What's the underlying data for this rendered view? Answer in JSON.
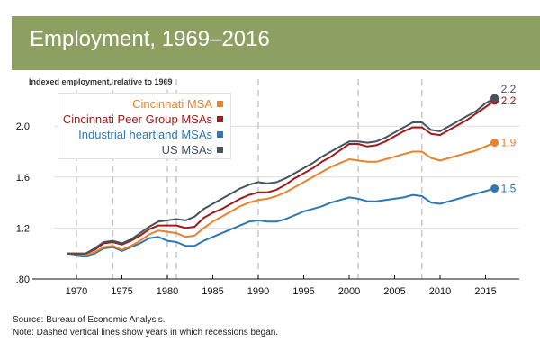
{
  "header": {
    "title": "Employment, 1969–2016",
    "subtitle": "Indexed employment, relative to 1969",
    "banner_color": "#8da061"
  },
  "chart_data": {
    "type": "line",
    "title": "Employment, 1969–2016",
    "ylabel": "Indexed employment, relative to 1969",
    "xlabel": "",
    "xlim": [
      1966,
      2019
    ],
    "ylim": [
      0.8,
      2.3
    ],
    "x_ticks": [
      1970,
      1975,
      1980,
      1985,
      1990,
      1995,
      2000,
      2005,
      2010,
      2015
    ],
    "y_ticks": [
      0.8,
      1.2,
      1.6,
      2.0
    ],
    "y_tick_labels": [
      ".80",
      "1.2",
      "1.6",
      "2.0"
    ],
    "grid": "horizontal",
    "recession_years": [
      1970,
      1974,
      1980,
      1981,
      1990,
      2001,
      2008
    ],
    "legend_position": "top-left",
    "x": [
      1969,
      1970,
      1971,
      1972,
      1973,
      1974,
      1975,
      1976,
      1977,
      1978,
      1979,
      1980,
      1981,
      1982,
      1983,
      1984,
      1985,
      1986,
      1987,
      1988,
      1989,
      1990,
      1991,
      1992,
      1993,
      1994,
      1995,
      1996,
      1997,
      1998,
      1999,
      2000,
      2001,
      2002,
      2003,
      2004,
      2005,
      2006,
      2007,
      2008,
      2009,
      2010,
      2011,
      2012,
      2013,
      2014,
      2015,
      2016
    ],
    "series": [
      {
        "name": "Cincinnati MSA",
        "color": "#e9822a",
        "end_label": "1.9",
        "values": [
          1.0,
          1.0,
          0.99,
          1.01,
          1.05,
          1.06,
          1.03,
          1.06,
          1.1,
          1.15,
          1.18,
          1.17,
          1.16,
          1.13,
          1.14,
          1.2,
          1.25,
          1.29,
          1.33,
          1.37,
          1.4,
          1.42,
          1.43,
          1.45,
          1.48,
          1.52,
          1.56,
          1.6,
          1.64,
          1.68,
          1.71,
          1.74,
          1.73,
          1.72,
          1.72,
          1.74,
          1.76,
          1.78,
          1.8,
          1.8,
          1.75,
          1.73,
          1.75,
          1.77,
          1.79,
          1.81,
          1.84,
          1.87
        ]
      },
      {
        "name": "Cincinnati Peer Group MSAs",
        "color": "#a11b1b",
        "end_label": "2.2",
        "values": [
          1.0,
          1.0,
          1.0,
          1.03,
          1.08,
          1.09,
          1.07,
          1.1,
          1.14,
          1.19,
          1.22,
          1.22,
          1.22,
          1.2,
          1.21,
          1.28,
          1.32,
          1.35,
          1.39,
          1.43,
          1.46,
          1.48,
          1.48,
          1.5,
          1.54,
          1.59,
          1.63,
          1.67,
          1.72,
          1.76,
          1.81,
          1.86,
          1.86,
          1.84,
          1.85,
          1.88,
          1.92,
          1.96,
          1.99,
          1.99,
          1.94,
          1.93,
          1.97,
          2.01,
          2.05,
          2.1,
          2.15,
          2.2
        ]
      },
      {
        "name": "Industrial heartland MSAs",
        "color": "#2d79b5",
        "end_label": "1.5",
        "values": [
          1.0,
          0.99,
          0.98,
          1.0,
          1.04,
          1.05,
          1.02,
          1.05,
          1.08,
          1.12,
          1.13,
          1.1,
          1.09,
          1.06,
          1.06,
          1.1,
          1.13,
          1.16,
          1.19,
          1.22,
          1.25,
          1.26,
          1.25,
          1.25,
          1.27,
          1.3,
          1.33,
          1.35,
          1.37,
          1.4,
          1.42,
          1.44,
          1.43,
          1.41,
          1.41,
          1.42,
          1.43,
          1.44,
          1.46,
          1.45,
          1.4,
          1.39,
          1.41,
          1.43,
          1.45,
          1.47,
          1.49,
          1.51
        ]
      },
      {
        "name": "US MSAs",
        "color": "#47535e",
        "end_label": "2.2",
        "values": [
          1.0,
          1.0,
          1.0,
          1.04,
          1.09,
          1.1,
          1.08,
          1.11,
          1.16,
          1.21,
          1.25,
          1.26,
          1.27,
          1.26,
          1.29,
          1.35,
          1.39,
          1.43,
          1.47,
          1.51,
          1.54,
          1.56,
          1.55,
          1.56,
          1.59,
          1.63,
          1.67,
          1.71,
          1.76,
          1.8,
          1.84,
          1.88,
          1.88,
          1.87,
          1.88,
          1.91,
          1.95,
          1.99,
          2.03,
          2.03,
          1.97,
          1.96,
          2.0,
          2.04,
          2.08,
          2.12,
          2.18,
          2.22
        ]
      }
    ]
  },
  "footnotes": {
    "source": "Source: Bureau of Economic Analysis.",
    "note": "Note: Dashed vertical lines show years in which recessions began."
  }
}
